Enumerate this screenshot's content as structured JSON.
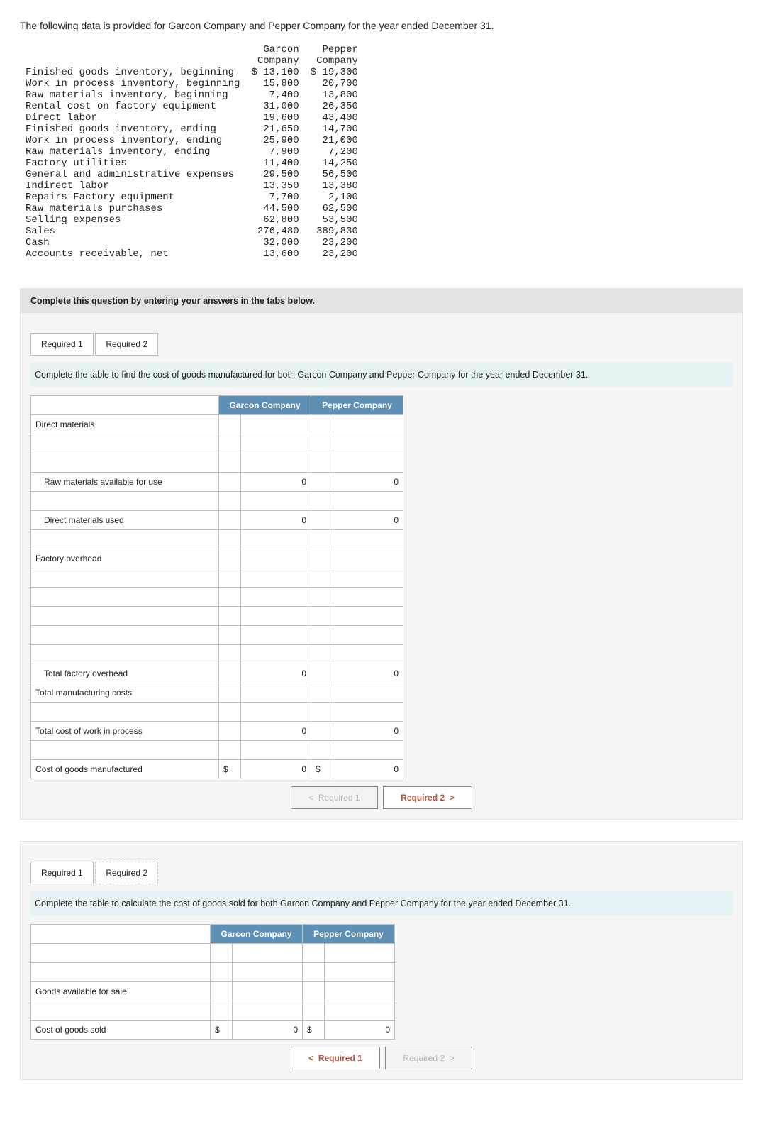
{
  "intro": "The following data is provided for Garcon Company and Pepper Company for the year ended December 31.",
  "data_table": {
    "headers": [
      "",
      "Garcon Company",
      "Pepper Company"
    ],
    "rows": [
      {
        "label": "Finished goods inventory, beginning",
        "garcon": "$ 13,100",
        "pepper": "$ 19,300"
      },
      {
        "label": "Work in process inventory, beginning",
        "garcon": "15,800",
        "pepper": "20,700"
      },
      {
        "label": "Raw materials inventory, beginning",
        "garcon": "7,400",
        "pepper": "13,800"
      },
      {
        "label": "Rental cost on factory equipment",
        "garcon": "31,000",
        "pepper": "26,350"
      },
      {
        "label": "Direct labor",
        "garcon": "19,600",
        "pepper": "43,400"
      },
      {
        "label": "Finished goods inventory, ending",
        "garcon": "21,650",
        "pepper": "14,700"
      },
      {
        "label": "Work in process inventory, ending",
        "garcon": "25,900",
        "pepper": "21,000"
      },
      {
        "label": "Raw materials inventory, ending",
        "garcon": "7,900",
        "pepper": "7,200"
      },
      {
        "label": "Factory utilities",
        "garcon": "11,400",
        "pepper": "14,250"
      },
      {
        "label": "General and administrative expenses",
        "garcon": "29,500",
        "pepper": "56,500"
      },
      {
        "label": "Indirect labor",
        "garcon": "13,350",
        "pepper": "13,380"
      },
      {
        "label": "Repairs—Factory equipment",
        "garcon": "7,700",
        "pepper": "2,100"
      },
      {
        "label": "Raw materials purchases",
        "garcon": "44,500",
        "pepper": "62,500"
      },
      {
        "label": "Selling expenses",
        "garcon": "62,800",
        "pepper": "53,500"
      },
      {
        "label": "Sales",
        "garcon": "276,480",
        "pepper": "389,830"
      },
      {
        "label": "Cash",
        "garcon": "32,000",
        "pepper": "23,200"
      },
      {
        "label": "Accounts receivable, net",
        "garcon": "13,600",
        "pepper": "23,200"
      }
    ]
  },
  "question_bar": "Complete this question by entering your answers in the tabs below.",
  "tabs": {
    "r1": "Required 1",
    "r2": "Required 2"
  },
  "req1": {
    "instr": "Complete the table to find the cost of goods manufactured for both Garcon Company and Pepper Company for the year ended December 31.",
    "head_garcon": "Garcon Company",
    "head_pepper": "Pepper Company",
    "rows": [
      {
        "label": "Direct materials",
        "indent": 0,
        "g_cur": "",
        "g_val": "",
        "p_cur": "",
        "p_val": ""
      },
      {
        "label": "",
        "indent": 0,
        "g_cur": "",
        "g_val": "",
        "p_cur": "",
        "p_val": ""
      },
      {
        "label": "",
        "indent": 0,
        "g_cur": "",
        "g_val": "",
        "p_cur": "",
        "p_val": ""
      },
      {
        "label": "Raw materials available for use",
        "indent": 1,
        "g_cur": "",
        "g_val": "0",
        "p_cur": "",
        "p_val": "0"
      },
      {
        "label": "",
        "indent": 0,
        "g_cur": "",
        "g_val": "",
        "p_cur": "",
        "p_val": ""
      },
      {
        "label": "Direct materials used",
        "indent": 1,
        "g_cur": "",
        "g_val": "0",
        "p_cur": "",
        "p_val": "0"
      },
      {
        "label": "",
        "indent": 0,
        "g_cur": "",
        "g_val": "",
        "p_cur": "",
        "p_val": ""
      },
      {
        "label": "Factory overhead",
        "indent": 0,
        "g_cur": "",
        "g_val": "",
        "p_cur": "",
        "p_val": ""
      },
      {
        "label": "",
        "indent": 0,
        "g_cur": "",
        "g_val": "",
        "p_cur": "",
        "p_val": ""
      },
      {
        "label": "",
        "indent": 0,
        "g_cur": "",
        "g_val": "",
        "p_cur": "",
        "p_val": ""
      },
      {
        "label": "",
        "indent": 0,
        "g_cur": "",
        "g_val": "",
        "p_cur": "",
        "p_val": ""
      },
      {
        "label": "",
        "indent": 0,
        "g_cur": "",
        "g_val": "",
        "p_cur": "",
        "p_val": ""
      },
      {
        "label": "",
        "indent": 0,
        "g_cur": "",
        "g_val": "",
        "p_cur": "",
        "p_val": ""
      },
      {
        "label": "Total factory overhead",
        "indent": 1,
        "g_cur": "",
        "g_val": "0",
        "p_cur": "",
        "p_val": "0"
      },
      {
        "label": "Total manufacturing costs",
        "indent": 0,
        "g_cur": "",
        "g_val": "",
        "p_cur": "",
        "p_val": ""
      },
      {
        "label": "",
        "indent": 0,
        "g_cur": "",
        "g_val": "",
        "p_cur": "",
        "p_val": ""
      },
      {
        "label": "Total cost of work in process",
        "indent": 0,
        "g_cur": "",
        "g_val": "0",
        "p_cur": "",
        "p_val": "0"
      },
      {
        "label": "",
        "indent": 0,
        "g_cur": "",
        "g_val": "",
        "p_cur": "",
        "p_val": ""
      },
      {
        "label": "Cost of goods manufactured",
        "indent": 0,
        "g_cur": "$",
        "g_val": "0",
        "p_cur": "$",
        "p_val": "0"
      }
    ],
    "nav_prev": "Required 1",
    "nav_next": "Required 2"
  },
  "req2": {
    "instr": "Complete the table to calculate the cost of goods sold for both Garcon Company and Pepper Company for the year ended December 31.",
    "head_garcon": "Garcon Company",
    "head_pepper": "Pepper Company",
    "rows": [
      {
        "label": "",
        "indent": 0,
        "g_cur": "",
        "g_val": "",
        "p_cur": "",
        "p_val": ""
      },
      {
        "label": "",
        "indent": 0,
        "g_cur": "",
        "g_val": "",
        "p_cur": "",
        "p_val": ""
      },
      {
        "label": "Goods available for sale",
        "indent": 0,
        "g_cur": "",
        "g_val": "",
        "p_cur": "",
        "p_val": ""
      },
      {
        "label": "",
        "indent": 0,
        "g_cur": "",
        "g_val": "",
        "p_cur": "",
        "p_val": ""
      },
      {
        "label": "Cost of goods sold",
        "indent": 0,
        "g_cur": "$",
        "g_val": "0",
        "p_cur": "$",
        "p_val": "0"
      }
    ],
    "nav_prev": "Required 1",
    "nav_next": "Required 2"
  },
  "chevrons": {
    "left": "<",
    "right": ">"
  }
}
